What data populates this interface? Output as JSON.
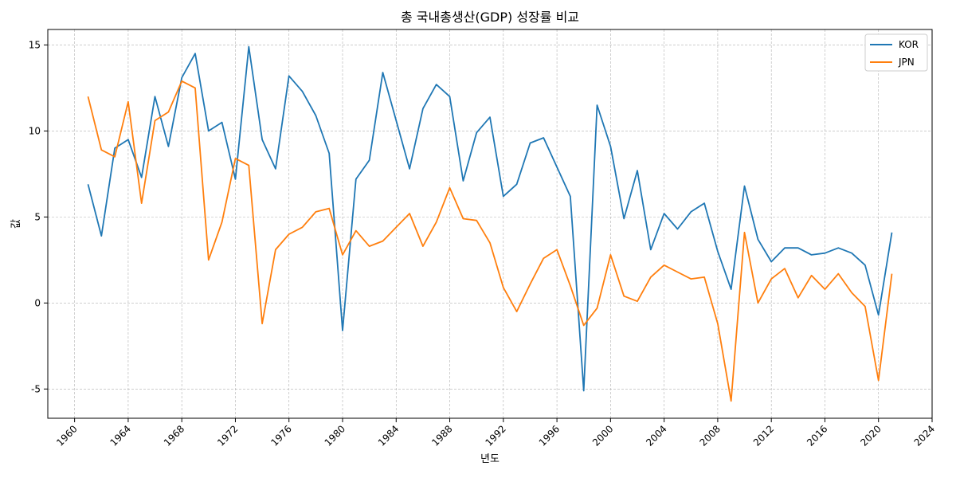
{
  "chart_data": {
    "type": "line",
    "title": "총 국내총생산(GDP) 성장률 비교",
    "xlabel": "년도",
    "ylabel": "값",
    "xlim": [
      1958,
      2024
    ],
    "ylim": [
      -6.7,
      15.9
    ],
    "x_ticks": [
      "1960",
      "1964",
      "1968",
      "1972",
      "1976",
      "1980",
      "1984",
      "1988",
      "1992",
      "1996",
      "2000",
      "2004",
      "2008",
      "2012",
      "2016",
      "2020",
      "2024"
    ],
    "y_ticks": [
      "-5",
      "0",
      "5",
      "10",
      "15"
    ],
    "grid": true,
    "legend_position": "top-right",
    "x": [
      1961,
      1962,
      1963,
      1964,
      1965,
      1966,
      1967,
      1968,
      1969,
      1970,
      1971,
      1972,
      1973,
      1974,
      1975,
      1976,
      1977,
      1978,
      1979,
      1980,
      1981,
      1982,
      1983,
      1984,
      1985,
      1986,
      1987,
      1988,
      1989,
      1990,
      1991,
      1992,
      1993,
      1994,
      1995,
      1996,
      1997,
      1998,
      1999,
      2000,
      2001,
      2002,
      2003,
      2004,
      2005,
      2006,
      2007,
      2008,
      2009,
      2010,
      2011,
      2012,
      2013,
      2014,
      2015,
      2016,
      2017,
      2018,
      2019,
      2020,
      2021
    ],
    "series": [
      {
        "name": "KOR",
        "color": "#1f77b4",
        "values": [
          6.9,
          3.9,
          9.0,
          9.5,
          7.3,
          12.0,
          9.1,
          13.1,
          14.5,
          10.0,
          10.5,
          7.2,
          14.9,
          9.5,
          7.8,
          13.2,
          12.3,
          10.9,
          8.7,
          -1.6,
          7.2,
          8.3,
          13.4,
          10.6,
          7.8,
          11.3,
          12.7,
          12.0,
          7.1,
          9.9,
          10.8,
          6.2,
          6.9,
          9.3,
          9.6,
          7.9,
          6.2,
          -5.1,
          11.5,
          9.1,
          4.9,
          7.7,
          3.1,
          5.2,
          4.3,
          5.3,
          5.8,
          3.0,
          0.8,
          6.8,
          3.7,
          2.4,
          3.2,
          3.2,
          2.8,
          2.9,
          3.2,
          2.9,
          2.2,
          -0.7,
          4.1
        ]
      },
      {
        "name": "JPN",
        "color": "#ff7f0e",
        "values": [
          12.0,
          8.9,
          8.5,
          11.7,
          5.8,
          10.6,
          11.1,
          12.9,
          12.5,
          2.5,
          4.7,
          8.4,
          8.0,
          -1.2,
          3.1,
          4.0,
          4.4,
          5.3,
          5.5,
          2.8,
          4.2,
          3.3,
          3.6,
          4.4,
          5.2,
          3.3,
          4.7,
          6.7,
          4.9,
          4.8,
          3.5,
          0.9,
          -0.5,
          1.1,
          2.6,
          3.1,
          1.0,
          -1.3,
          -0.3,
          2.8,
          0.4,
          0.1,
          1.5,
          2.2,
          1.8,
          1.4,
          1.5,
          -1.2,
          -5.7,
          4.1,
          0.0,
          1.4,
          2.0,
          0.3,
          1.6,
          0.8,
          1.7,
          0.6,
          -0.2,
          -4.5,
          1.7
        ]
      }
    ]
  }
}
